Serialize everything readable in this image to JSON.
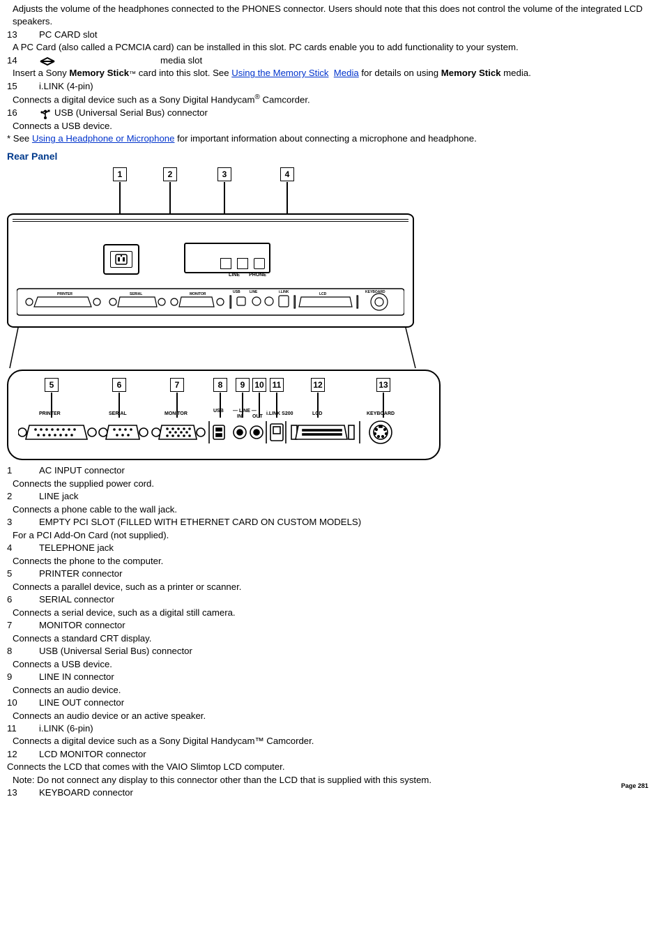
{
  "top": {
    "desc12": "Adjusts the volume of the headphones connected to the PHONES connector. Users should note that this does not control the volume of the integrated LCD speakers.",
    "n13": "13",
    "t13": "PC CARD slot",
    "d13": "A PC Card (also called a PCMCIA card) can be installed in this slot. PC cards enable you to add functionality to your system.",
    "n14": "14",
    "t14": "media slot",
    "d14a": "Insert a Sony ",
    "d14b": "Memory Stick",
    "d14trade": "™",
    "d14c": " card into this slot. See ",
    "link_ms": "Using the Memory Stick",
    "link_media": "Media",
    "d14d": " for details on using ",
    "d14e": "Memory Stick",
    "d14f": " media.",
    "n15": "15",
    "t15": "i.LINK (4-pin)",
    "d15a": "Connects a digital device such as a Sony Digital Handycam",
    "reg": "®",
    "d15b": " Camcorder.",
    "n16": "16",
    "t16": "USB (Universal Serial Bus) connector",
    "d16": "Connects a USB device.",
    "note_star_a": "* See ",
    "link_hp": "Using a Headphone or Microphone",
    "note_star_b": " for important information about connecting a microphone and headphone."
  },
  "heading": "Rear Panel",
  "diagram": {
    "top_numbers": [
      "1",
      "2",
      "3",
      "4"
    ],
    "zoom_numbers": [
      "5",
      "6",
      "7",
      "8",
      "9",
      "10",
      "11",
      "12",
      "13"
    ],
    "labels": {
      "printer": "PRINTER",
      "serial": "SERIAL",
      "monitor": "MONITOR",
      "usb": "USB",
      "line_in": "LINE\nIN",
      "line_out": "LINE\nOUT",
      "ilink": "i.LINK S200",
      "lcd": "LCD",
      "keyboard": "KEYBOARD",
      "line": "LINE",
      "phone": "PHONE"
    }
  },
  "rear": [
    {
      "n": "1",
      "t": "AC INPUT connector",
      "d": "Connects the supplied power cord."
    },
    {
      "n": "2",
      "t": "LINE jack",
      "d": "Connects a phone cable to the wall jack."
    },
    {
      "n": "3",
      "t": "EMPTY PCI SLOT (FILLED WITH ETHERNET CARD ON CUSTOM MODELS)",
      "d": "For a PCI Add-On Card (not supplied)."
    },
    {
      "n": "4",
      "t": "TELEPHONE jack",
      "d": "Connects the phone to the computer."
    },
    {
      "n": "5",
      "t": "PRINTER connector",
      "d": "Connects a parallel device, such as a printer or scanner."
    },
    {
      "n": "6",
      "t": "SERIAL connector",
      "d": "Connects a serial device, such as a digital still camera."
    },
    {
      "n": "7",
      "t": "MONITOR connector",
      "d": "Connects a standard CRT display."
    },
    {
      "n": "8",
      "t": "USB (Universal Serial Bus) connector",
      "d": "Connects a USB device."
    },
    {
      "n": "9",
      "t": "LINE IN connector",
      "d": "Connects an audio device."
    },
    {
      "n": "10",
      "t": "LINE OUT connector",
      "d": "Connects an audio device or an active speaker."
    },
    {
      "n": "11",
      "t": "i.LINK (6-pin)",
      "d": "Connects a digital device such as a Sony Digital Handycam™ Camcorder."
    },
    {
      "n": "12",
      "t": "LCD MONITOR connector",
      "d": "Connects the LCD that comes with the VAIO Slimtop LCD computer."
    },
    {
      "n": "13",
      "t": "KEYBOARD connector",
      "d": ""
    }
  ],
  "note12": "Note: Do not connect any display to this connector other than the LCD that is supplied with this system.",
  "page_number": "Page 281"
}
